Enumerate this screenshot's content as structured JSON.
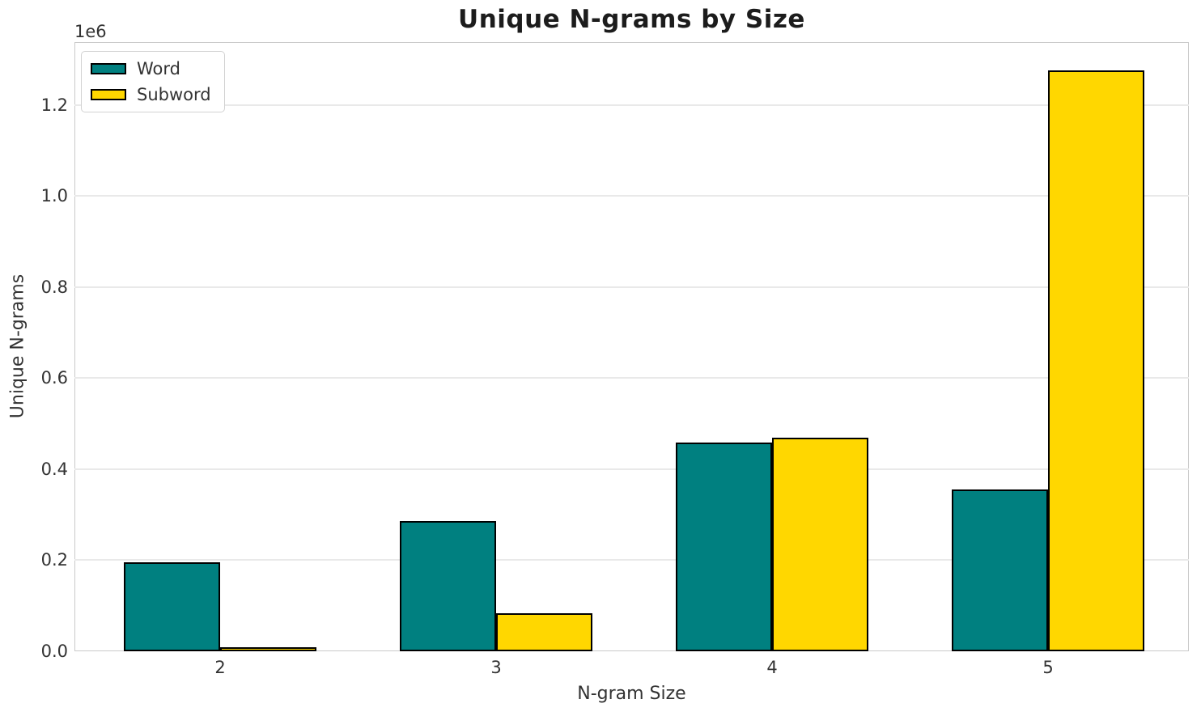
{
  "chart_data": {
    "type": "bar",
    "title": "Unique N-grams by Size",
    "xlabel": "N-gram Size",
    "ylabel": "Unique N-grams",
    "offset_label": "1e6",
    "categories": [
      "2",
      "3",
      "4",
      "5"
    ],
    "series": [
      {
        "name": "Word",
        "color": "#008080",
        "values": [
          196000,
          286000,
          459000,
          356000
        ]
      },
      {
        "name": "Subword",
        "color": "#FFD700",
        "values": [
          9000,
          84000,
          469000,
          1275000
        ]
      }
    ],
    "bar_edge_color": "#000000",
    "ylim": [
      0,
      1338000
    ],
    "yticks": [
      0.0,
      0.2,
      0.4,
      0.6,
      0.8,
      1.0,
      1.2
    ],
    "ytick_labels": [
      "0.0",
      "0.2",
      "0.4",
      "0.6",
      "0.8",
      "1.0",
      "1.2"
    ],
    "ytick_scale": 1000000,
    "grid": true,
    "legend_position": "upper left"
  },
  "legend": {
    "items": [
      {
        "label": "Word",
        "color": "#008080"
      },
      {
        "label": "Subword",
        "color": "#FFD700"
      }
    ]
  }
}
